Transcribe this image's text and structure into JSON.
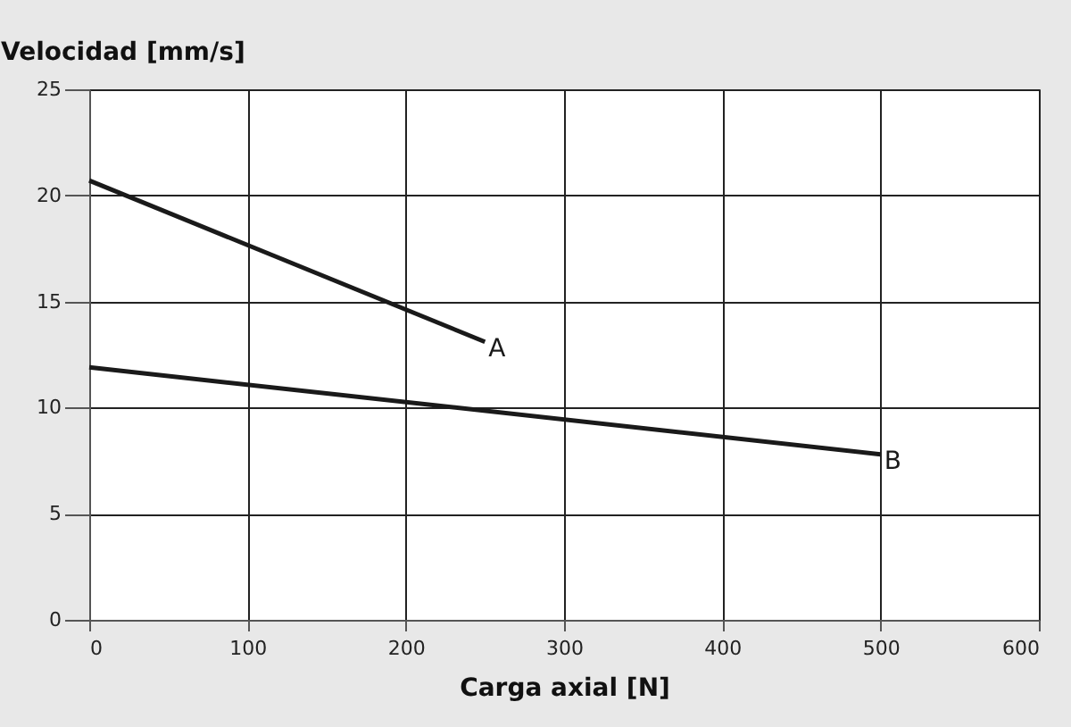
{
  "chart_data": {
    "type": "line",
    "xlabel": "Carga axial [N]",
    "ylabel": "Velocidad [mm/s]",
    "series": [
      {
        "name": "A",
        "color": "#1a1a1a",
        "x": [
          0,
          250
        ],
        "values": [
          20.7,
          13.1
        ]
      },
      {
        "name": "B",
        "color": "#1a1a1a",
        "x": [
          0,
          500
        ],
        "values": [
          11.9,
          7.8
        ]
      }
    ],
    "xlim": [
      0,
      600
    ],
    "xticks": [
      0,
      100,
      200,
      300,
      400,
      500,
      600
    ],
    "ylim": [
      0,
      25
    ],
    "yticks": [
      0,
      5,
      10,
      15,
      20,
      25
    ],
    "grid": true,
    "legend": false,
    "marker": "none",
    "line_style": "solid"
  }
}
